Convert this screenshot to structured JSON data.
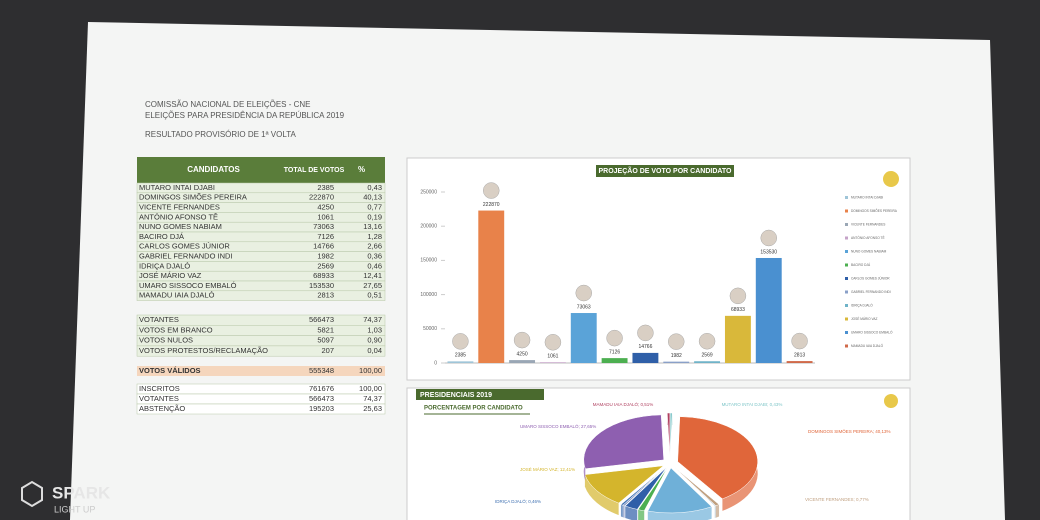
{
  "header": {
    "org": "COMISSÃO NACIONAL DE ELEIÇÕES - CNE",
    "election": "ELEIÇÕES PARA PRESIDÊNCIA DA REPÚBLICA 2019",
    "result": "RESULTADO PROVISÓRIO DE 1ª VOLTA"
  },
  "table": {
    "columns": [
      "CANDIDATOS",
      "TOTAL DE VOTOS",
      "%"
    ],
    "rows": [
      [
        "MUTARO INTAI DJABI",
        "2385",
        "0,43"
      ],
      [
        "DOMINGOS SIMÕES PEREIRA",
        "222870",
        "40,13"
      ],
      [
        "VICENTE FERNANDES",
        "4250",
        "0,77"
      ],
      [
        "ANTÓNIO AFONSO TÊ",
        "1061",
        "0,19"
      ],
      [
        "NUNO GOMES NABIAM",
        "73063",
        "13,16"
      ],
      [
        "BACIRO DJÁ",
        "7126",
        "1,28"
      ],
      [
        "CARLOS GOMES JÚNIOR",
        "14766",
        "2,66"
      ],
      [
        "GABRIEL FERNANDO INDI",
        "1982",
        "0,36"
      ],
      [
        "IDRIÇA DJALÓ",
        "2569",
        "0,46"
      ],
      [
        "JOSÉ MÁRIO VAZ",
        "68933",
        "12,41"
      ],
      [
        "UMARO SISSOCO EMBALÓ",
        "153530",
        "27,65"
      ],
      [
        "MAMADU IAIA DJALÓ",
        "2813",
        "0,51"
      ]
    ],
    "summary": [
      [
        "VOTANTES",
        "566473",
        "74,37"
      ],
      [
        "VOTOS EM BRANCO",
        "5821",
        "1,03"
      ],
      [
        "VOTOS NULOS",
        "5097",
        "0,90"
      ],
      [
        "VOTOS PROTESTOS/RECLAMAÇÃO",
        "207",
        "0,04"
      ]
    ],
    "valid": [
      "VOTOS VÁLIDOS",
      "555348",
      "100,00"
    ],
    "registration": [
      [
        "INSCRITOS",
        "761676",
        "100,00"
      ],
      [
        "VOTANTES",
        "566473",
        "74,37"
      ],
      [
        "ABSTENÇÃO",
        "195203",
        "25,63"
      ]
    ]
  },
  "chart_data": [
    {
      "type": "bar",
      "title": "PROJEÇÃO DE VOTO POR CANDIDATO",
      "categories": [
        "MUTARO INTAI DJABI",
        "DOMINGOS SIMÕES PEREIRA",
        "VICENTE FERNANDES",
        "ANTÓNIO AFONSO TÊ",
        "NUNO GOMES NABIAM",
        "BACIRO DJÁ",
        "CARLOS GOMES JÚNIOR",
        "GABRIEL FERNANDO INDI",
        "IDRIÇA DJALÓ",
        "JOSÉ MÁRIO VAZ",
        "UMARO SISSOCO EMBALÓ",
        "MAMADU IAIA DJALÓ"
      ],
      "values": [
        2385,
        222870,
        4250,
        1061,
        73063,
        7126,
        14766,
        1982,
        2569,
        68933,
        153530,
        2813
      ],
      "colors": [
        "#9fc5d8",
        "#e8824a",
        "#9aa7b5",
        "#c5a3c8",
        "#5aa3d8",
        "#4caf50",
        "#2f5fa8",
        "#8aa0c8",
        "#6fb3c8",
        "#d9b83a",
        "#4a90d0",
        "#d06a4a"
      ],
      "ylim": [
        0,
        250000
      ],
      "yticks": [
        0,
        50000,
        100000,
        150000,
        200000,
        250000
      ]
    },
    {
      "type": "pie",
      "title": "PRESIDENCIAIS 2019",
      "subtitle": "PORCENTAGEM POR CANDIDATO",
      "values": [
        0.43,
        40.13,
        0.77,
        0.19,
        13.16,
        1.28,
        2.66,
        0.36,
        0.46,
        12.41,
        27.65,
        0.51
      ],
      "labels": [
        "MUTARO INTAI DJABI; 0,43%",
        "DOMINGOS SIMÕES PEREIRA; 40,13%",
        "VICENTE FERNANDES; 0,77%",
        null,
        null,
        null,
        null,
        null,
        "IDRIÇA DJALÓ; 0,46%",
        "JOSÉ MÁRIO VAZ; 12,41%",
        "UMARO SISSOCO EMBALÓ; 27,65%",
        "MAMADU IAIA DJALÓ; 0,51%"
      ],
      "colors": [
        "#7fc6c8",
        "#e0663a",
        "#c0a080",
        "#a8c0d0",
        "#6fb0d8",
        "#4caf50",
        "#2f5fa8",
        "#7a8fc0",
        "#3d6fb0",
        "#d4b52c",
        "#8e5fb0",
        "#b04060"
      ]
    }
  ],
  "watermark": {
    "brand": "SPARK",
    "tagline": "LIGHT UP"
  }
}
